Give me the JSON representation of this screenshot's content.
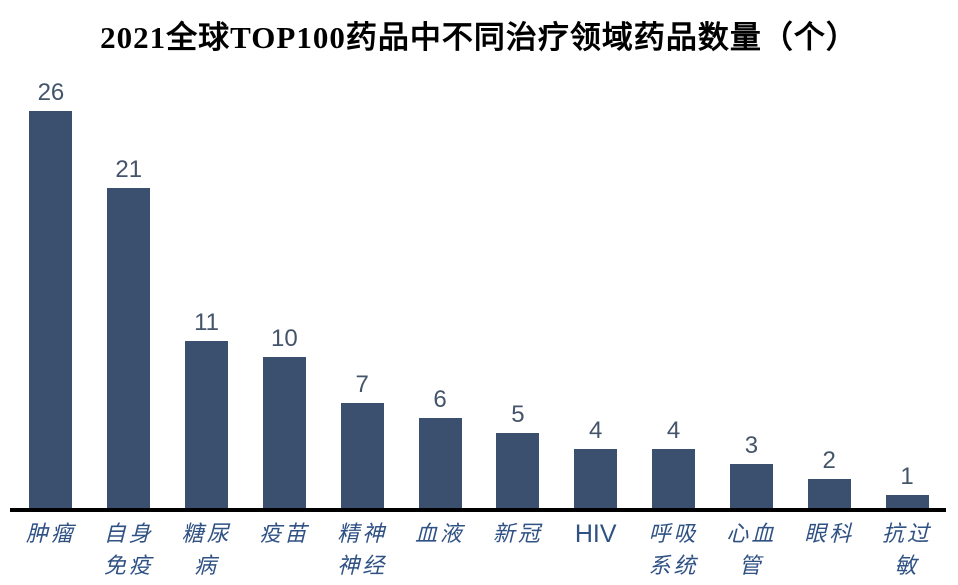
{
  "title": "2021全球TOP100药品中不同治疗领域药品数量（个）",
  "colors": {
    "bar": "#3B506E",
    "value_label": "#44546A",
    "category_label": "#2F5184",
    "axis": "#000000",
    "background": "#FFFFFF"
  },
  "chart_data": {
    "type": "bar",
    "title": "2021全球TOP100药品中不同治疗领域药品数量（个）",
    "categories": [
      "肿瘤",
      "自身免疫",
      "糖尿病",
      "疫苗",
      "精神神经",
      "血液",
      "新冠",
      "HIV",
      "呼吸系统",
      "心血管",
      "眼科",
      "抗过敏"
    ],
    "category_lines": [
      [
        "肿瘤"
      ],
      [
        "自身",
        "免疫"
      ],
      [
        "糖尿",
        "病"
      ],
      [
        "疫苗"
      ],
      [
        "精神",
        "神经"
      ],
      [
        "血液"
      ],
      [
        "新冠"
      ],
      [
        "HIV"
      ],
      [
        "呼吸",
        "系统"
      ],
      [
        "心血",
        "管"
      ],
      [
        "眼科"
      ],
      [
        "抗过",
        "敏"
      ]
    ],
    "values": [
      26,
      21,
      11,
      10,
      7,
      6,
      5,
      4,
      4,
      3,
      2,
      1
    ],
    "data_labels": [
      26,
      21,
      11,
      10,
      7,
      6,
      5,
      4,
      4,
      3,
      2,
      1
    ],
    "xlabel": "",
    "ylabel": "",
    "ylim": [
      0,
      26
    ],
    "gridlines": false,
    "legend": "none",
    "y_axis_ticks": "none"
  }
}
